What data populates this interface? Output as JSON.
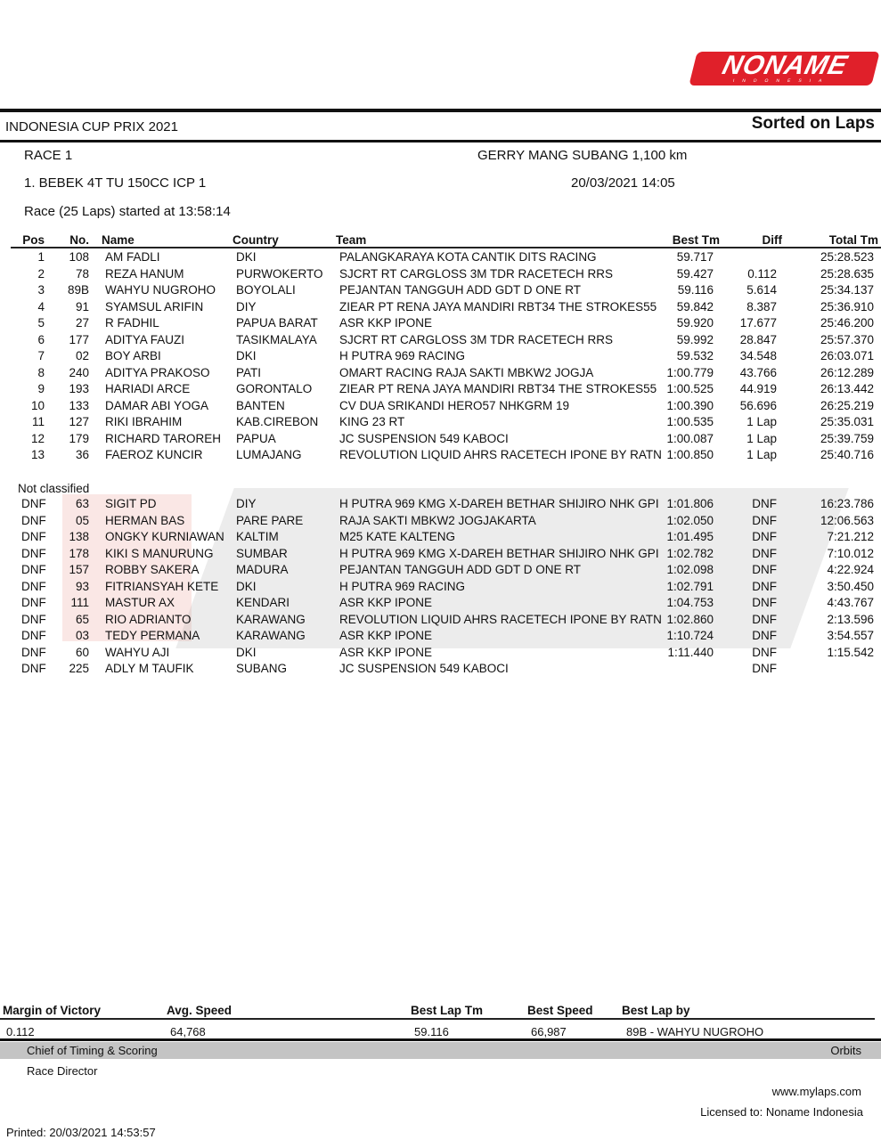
{
  "logo": {
    "brand": "NONAME",
    "sub": "INDONESIA",
    "color": "#e0202a"
  },
  "header": {
    "event": "INDONESIA CUP PRIX 2021",
    "sort": "Sorted on Laps",
    "race": "RACE 1",
    "circuit": "GERRY MANG SUBANG 1,100 km",
    "class": "1. BEBEK 4T TU 150CC ICP 1",
    "datetime": "20/03/2021 14:05",
    "started": "Race (25 Laps) started at 13:58:14"
  },
  "columns": {
    "pos": "Pos",
    "no": "No.",
    "name": "Name",
    "country": "Country",
    "team": "Team",
    "best": "Best Tm",
    "diff": "Diff",
    "total": "Total Tm"
  },
  "classified": [
    {
      "pos": "1",
      "no": "108",
      "name": "AM FADLI",
      "country": "DKI",
      "team": "PALANGKARAYA KOTA CANTIK DITS RACING",
      "best": "59.717",
      "diff": "",
      "total": "25:28.523"
    },
    {
      "pos": "2",
      "no": "78",
      "name": "REZA HANUM",
      "country": "PURWOKERTO",
      "team": "SJCRT RT CARGLOSS 3M TDR RACETECH RRS",
      "best": "59.427",
      "diff": "0.112",
      "total": "25:28.635"
    },
    {
      "pos": "3",
      "no": "89B",
      "name": "WAHYU NUGROHO",
      "country": "BOYOLALI",
      "team": "PEJANTAN TANGGUH ADD GDT D ONE RT",
      "best": "59.116",
      "diff": "5.614",
      "total": "25:34.137"
    },
    {
      "pos": "4",
      "no": "91",
      "name": "SYAMSUL ARIFIN",
      "country": "DIY",
      "team": "ZIEAR PT RENA JAYA MANDIRI RBT34 THE STROKES55",
      "best": "59.842",
      "diff": "8.387",
      "total": "25:36.910"
    },
    {
      "pos": "5",
      "no": "27",
      "name": "R FADHIL",
      "country": "PAPUA BARAT",
      "team": "ASR KKP IPONE",
      "best": "59.920",
      "diff": "17.677",
      "total": "25:46.200"
    },
    {
      "pos": "6",
      "no": "177",
      "name": "ADITYA FAUZI",
      "country": "TASIKMALAYA",
      "team": "SJCRT RT CARGLOSS 3M TDR RACETECH RRS",
      "best": "59.992",
      "diff": "28.847",
      "total": "25:57.370"
    },
    {
      "pos": "7",
      "no": "02",
      "name": "BOY ARBI",
      "country": "DKI",
      "team": "H PUTRA 969 RACING",
      "best": "59.532",
      "diff": "34.548",
      "total": "26:03.071"
    },
    {
      "pos": "8",
      "no": "240",
      "name": "ADITYA PRAKOSO",
      "country": "PATI",
      "team": "OMART RACING RAJA SAKTI MBKW2 JOGJA",
      "best": "1:00.779",
      "diff": "43.766",
      "total": "26:12.289"
    },
    {
      "pos": "9",
      "no": "193",
      "name": "HARIADI ARCE",
      "country": "GORONTALO",
      "team": "ZIEAR PT RENA JAYA MANDIRI RBT34 THE STROKES55",
      "best": "1:00.525",
      "diff": "44.919",
      "total": "26:13.442"
    },
    {
      "pos": "10",
      "no": "133",
      "name": "DAMAR ABI YOGA",
      "country": "BANTEN",
      "team": "CV DUA SRIKANDI HERO57 NHKGRM 19",
      "best": "1:00.390",
      "diff": "56.696",
      "total": "26:25.219"
    },
    {
      "pos": "11",
      "no": "127",
      "name": "RIKI IBRAHIM",
      "country": "KAB.CIREBON",
      "team": "KING 23 RT",
      "best": "1:00.535",
      "diff": "1 Lap",
      "total": "25:35.031"
    },
    {
      "pos": "12",
      "no": "179",
      "name": "RICHARD TAROREH",
      "country": "PAPUA",
      "team": "JC SUSPENSION 549 KABOCI",
      "best": "1:00.087",
      "diff": "1 Lap",
      "total": "25:39.759"
    },
    {
      "pos": "13",
      "no": "36",
      "name": "FAEROZ KUNCIR",
      "country": "LUMAJANG",
      "team": "REVOLUTION LIQUID AHRS RACETECH IPONE BY RATN",
      "best": "1:00.850",
      "diff": "1 Lap",
      "total": "25:40.716"
    }
  ],
  "not_classified_label": "Not classified",
  "not_classified": [
    {
      "pos": "DNF",
      "no": "63",
      "name": "SIGIT PD",
      "country": "DIY",
      "team": "H PUTRA 969 KMG X-DAREH BETHAR SHIJIRO NHK GPI",
      "best": "1:01.806",
      "diff": "DNF",
      "total": "16:23.786"
    },
    {
      "pos": "DNF",
      "no": "05",
      "name": "HERMAN BAS",
      "country": "PARE PARE",
      "team": "RAJA SAKTI MBKW2 JOGJAKARTA",
      "best": "1:02.050",
      "diff": "DNF",
      "total": "12:06.563"
    },
    {
      "pos": "DNF",
      "no": "138",
      "name": "ONGKY KURNIAWAN",
      "country": "KALTIM",
      "team": "M25 KATE KALTENG",
      "best": "1:01.495",
      "diff": "DNF",
      "total": "7:21.212"
    },
    {
      "pos": "DNF",
      "no": "178",
      "name": "KIKI S MANURUNG",
      "country": "SUMBAR",
      "team": "H PUTRA 969 KMG X-DAREH BETHAR SHIJIRO NHK GPI",
      "best": "1:02.782",
      "diff": "DNF",
      "total": "7:10.012"
    },
    {
      "pos": "DNF",
      "no": "157",
      "name": "ROBBY SAKERA",
      "country": "MADURA",
      "team": "PEJANTAN TANGGUH ADD GDT D ONE RT",
      "best": "1:02.098",
      "diff": "DNF",
      "total": "4:22.924"
    },
    {
      "pos": "DNF",
      "no": "93",
      "name": "FITRIANSYAH KETE",
      "country": "DKI",
      "team": "H PUTRA 969 RACING",
      "best": "1:02.791",
      "diff": "DNF",
      "total": "3:50.450"
    },
    {
      "pos": "DNF",
      "no": "111",
      "name": "MASTUR AX",
      "country": "KENDARI",
      "team": "ASR KKP IPONE",
      "best": "1:04.753",
      "diff": "DNF",
      "total": "4:43.767"
    },
    {
      "pos": "DNF",
      "no": "65",
      "name": "RIO ADRIANTO",
      "country": "KARAWANG",
      "team": "REVOLUTION LIQUID AHRS RACETECH IPONE BY RATN",
      "best": "1:02.860",
      "diff": "DNF",
      "total": "2:13.596"
    },
    {
      "pos": "DNF",
      "no": "03",
      "name": "TEDY PERMANA",
      "country": "KARAWANG",
      "team": "ASR KKP IPONE",
      "best": "1:10.724",
      "diff": "DNF",
      "total": "3:54.557"
    },
    {
      "pos": "DNF",
      "no": "60",
      "name": "WAHYU AJI",
      "country": "DKI",
      "team": "ASR KKP IPONE",
      "best": "1:11.440",
      "diff": "DNF",
      "total": "1:15.542"
    },
    {
      "pos": "DNF",
      "no": "225",
      "name": "ADLY M TAUFIK",
      "country": "SUBANG",
      "team": "JC SUSPENSION 549 KABOCI",
      "best": "",
      "diff": "DNF",
      "total": ""
    }
  ],
  "summary": {
    "labels": {
      "margin": "Margin of Victory",
      "avg": "Avg. Speed",
      "best_lap": "Best Lap Tm",
      "best_speed": "Best Speed",
      "best_by": "Best Lap by"
    },
    "values": {
      "margin": "0.112",
      "avg": "64,768",
      "best_lap": "59.116",
      "best_speed": "66,987",
      "best_by": "89B - WAHYU NUGROHO"
    }
  },
  "footer": {
    "chief": "Chief of Timing & Scoring",
    "orbits": "Orbits",
    "director": "Race Director",
    "website": "www.mylaps.com",
    "licensed": "Licensed to:  Noname Indonesia",
    "printed": "Printed: 20/03/2021 14:53:57"
  }
}
